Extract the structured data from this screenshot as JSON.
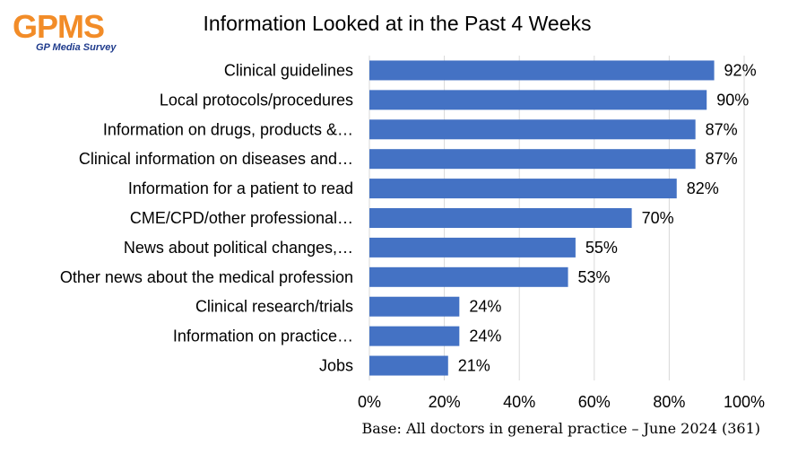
{
  "logo": {
    "main_text": "GPMS",
    "sub_text": "GP Media Survey",
    "main_color": "#f28c28",
    "sub_color": "#1f3b8c"
  },
  "footnote": "Base: All doctors in general practice – June 2024 (361)",
  "chart_data": {
    "type": "bar",
    "orientation": "horizontal",
    "title": "Information Looked at in the Past 4 Weeks",
    "xlabel": "",
    "ylabel": "",
    "categories": [
      "Clinical guidelines",
      "Local protocols/procedures",
      "Information on drugs, products &…",
      "Clinical information on diseases and…",
      "Information for a patient to read",
      "CME/CPD/other professional…",
      "News about political changes,…",
      "Other news about the medical profession",
      "Clinical research/trials",
      "Information on practice…",
      "Jobs"
    ],
    "values": [
      92,
      90,
      87,
      87,
      82,
      70,
      55,
      53,
      24,
      24,
      21
    ],
    "value_labels": [
      "92%",
      "90%",
      "87%",
      "87%",
      "82%",
      "70%",
      "55%",
      "53%",
      "24%",
      "24%",
      "21%"
    ],
    "xlim": [
      0,
      100
    ],
    "xticks": [
      0,
      20,
      40,
      60,
      80,
      100
    ],
    "xtick_labels": [
      "0%",
      "20%",
      "40%",
      "60%",
      "80%",
      "100%"
    ],
    "grid": "vertical",
    "legend": "none",
    "bar_color": "#4472c4",
    "grid_color": "#d9d9d9"
  }
}
